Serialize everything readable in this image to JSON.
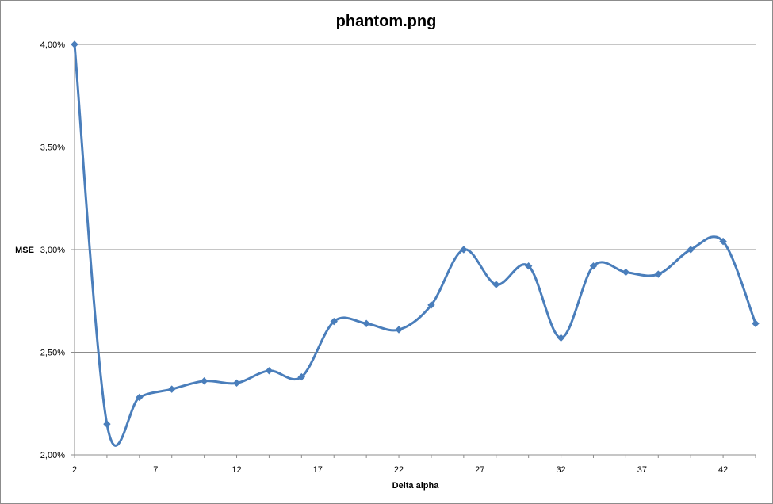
{
  "chart_data": {
    "type": "line",
    "title": "phantom.png",
    "xlabel": "Delta alpha",
    "ylabel": "MSE",
    "x_ticks": [
      "2",
      "7",
      "12",
      "17",
      "22",
      "27",
      "32",
      "37",
      "42"
    ],
    "y_ticks": [
      "2,00%",
      "2,50%",
      "3,00%",
      "3,50%",
      "4,00%"
    ],
    "xlim": [
      2,
      44
    ],
    "ylim": [
      2.0,
      4.0
    ],
    "y_unit": "%",
    "grid": "horizontal major gridlines",
    "legend": "none",
    "smoothed": true,
    "marker": "diamond",
    "series_color": "#4a7ebb",
    "series": [
      {
        "x": [
          2,
          4,
          6,
          8,
          10,
          12,
          14,
          16,
          18,
          20,
          22,
          24,
          26,
          28,
          30,
          32,
          34,
          36,
          38,
          40,
          42,
          44
        ],
        "values": [
          4.0,
          2.15,
          2.28,
          2.32,
          2.36,
          2.35,
          2.41,
          2.38,
          2.65,
          2.64,
          2.61,
          2.73,
          3.0,
          2.83,
          2.92,
          2.57,
          2.92,
          2.89,
          2.88,
          3.0,
          3.04,
          2.64
        ]
      }
    ]
  }
}
